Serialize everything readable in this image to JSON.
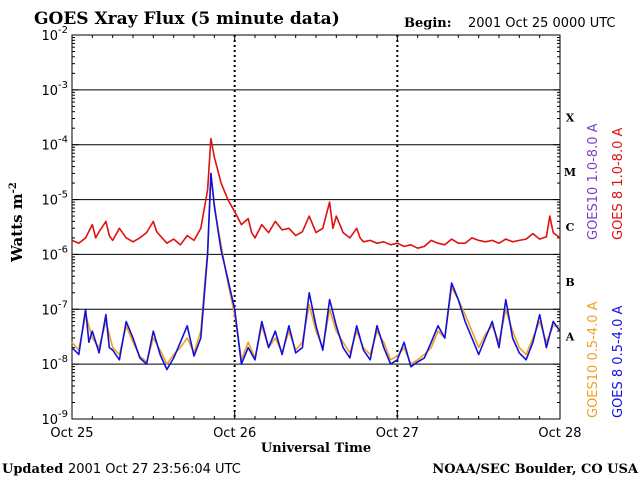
{
  "chart_data": {
    "type": "line",
    "title": "GOES Xray Flux (5 minute data)",
    "begin_label": "Begin:",
    "begin_value": "2001 Oct 25 0000 UTC",
    "ylabel": "Watts m",
    "ylabel_sup": "-2",
    "xlabel": "Universal Time",
    "yscale": "log",
    "ylim": [
      1e-09,
      0.01
    ],
    "y_ticks": [
      {
        "base": "10",
        "exp": "-2"
      },
      {
        "base": "10",
        "exp": "-3"
      },
      {
        "base": "10",
        "exp": "-4"
      },
      {
        "base": "10",
        "exp": "-5"
      },
      {
        "base": "10",
        "exp": "-6"
      },
      {
        "base": "10",
        "exp": "-7"
      },
      {
        "base": "10",
        "exp": "-8"
      },
      {
        "base": "10",
        "exp": "-9"
      }
    ],
    "x_ticks": [
      "Oct 25",
      "Oct 26",
      "Oct 27",
      "Oct 28"
    ],
    "x_range_hours": [
      0,
      72
    ],
    "flare_classes": [
      "X",
      "M",
      "C",
      "B",
      "A"
    ],
    "grid": "horizontal lines at each decade 1e-3 to 1e-8; dotted vertical lines at day boundaries",
    "legend_placement": "right side, vertical",
    "series": [
      {
        "name": "GOES10 1.0-8.0 A",
        "color": "#8040c0",
        "hidden_under": "GOES 8 1.0-8.0 A"
      },
      {
        "name": "GOES 8 1.0-8.0 A",
        "color": "#e01010",
        "points": [
          [
            0,
            1.8e-06
          ],
          [
            1,
            1.6e-06
          ],
          [
            2,
            2e-06
          ],
          [
            3,
            3.5e-06
          ],
          [
            3.5,
            2e-06
          ],
          [
            4,
            2.6e-06
          ],
          [
            5,
            4e-06
          ],
          [
            5.5,
            2.2e-06
          ],
          [
            6,
            1.8e-06
          ],
          [
            7,
            3e-06
          ],
          [
            8,
            2e-06
          ],
          [
            9,
            1.7e-06
          ],
          [
            10,
            2e-06
          ],
          [
            11,
            2.5e-06
          ],
          [
            12,
            4e-06
          ],
          [
            12.5,
            2.6e-06
          ],
          [
            13,
            2.2e-06
          ],
          [
            14,
            1.6e-06
          ],
          [
            15,
            1.9e-06
          ],
          [
            16,
            1.5e-06
          ],
          [
            17,
            2.2e-06
          ],
          [
            18,
            1.8e-06
          ],
          [
            19,
            3e-06
          ],
          [
            20,
            1.5e-05
          ],
          [
            20.5,
            0.00013
          ],
          [
            21,
            6e-05
          ],
          [
            22,
            2e-05
          ],
          [
            23,
            1e-05
          ],
          [
            24,
            6e-06
          ],
          [
            25,
            3.5e-06
          ],
          [
            26,
            4.5e-06
          ],
          [
            26.5,
            2.5e-06
          ],
          [
            27,
            2e-06
          ],
          [
            28,
            3.5e-06
          ],
          [
            29,
            2.5e-06
          ],
          [
            30,
            4e-06
          ],
          [
            31,
            2.8e-06
          ],
          [
            32,
            3e-06
          ],
          [
            33,
            2.2e-06
          ],
          [
            34,
            2.6e-06
          ],
          [
            35,
            5e-06
          ],
          [
            36,
            2.5e-06
          ],
          [
            37,
            3e-06
          ],
          [
            38,
            9e-06
          ],
          [
            38.5,
            3e-06
          ],
          [
            39,
            5e-06
          ],
          [
            40,
            2.5e-06
          ],
          [
            41,
            2e-06
          ],
          [
            42,
            3e-06
          ],
          [
            42.5,
            2e-06
          ],
          [
            43,
            1.7e-06
          ],
          [
            44,
            1.8e-06
          ],
          [
            45,
            1.6e-06
          ],
          [
            46,
            1.7e-06
          ],
          [
            47,
            1.5e-06
          ],
          [
            48,
            1.6e-06
          ],
          [
            49,
            1.4e-06
          ],
          [
            50,
            1.5e-06
          ],
          [
            51,
            1.3e-06
          ],
          [
            52,
            1.4e-06
          ],
          [
            53,
            1.8e-06
          ],
          [
            54,
            1.6e-06
          ],
          [
            55,
            1.5e-06
          ],
          [
            56,
            1.9e-06
          ],
          [
            57,
            1.6e-06
          ],
          [
            58,
            1.6e-06
          ],
          [
            59,
            2e-06
          ],
          [
            60,
            1.8e-06
          ],
          [
            61,
            1.7e-06
          ],
          [
            62,
            1.8e-06
          ],
          [
            63,
            1.6e-06
          ],
          [
            64,
            1.9e-06
          ],
          [
            65,
            1.7e-06
          ],
          [
            66,
            1.8e-06
          ],
          [
            67,
            1.9e-06
          ],
          [
            68,
            2.4e-06
          ],
          [
            69,
            1.9e-06
          ],
          [
            70,
            2.1e-06
          ],
          [
            70.5,
            5e-06
          ],
          [
            71,
            2.5e-06
          ],
          [
            72,
            2e-06
          ]
        ]
      },
      {
        "name": "GOES10 0.5-4.0 A",
        "color": "#f0a020",
        "points": [
          [
            0,
            2.5e-08
          ],
          [
            1,
            1.8e-08
          ],
          [
            2,
            8e-08
          ],
          [
            3,
            3e-08
          ],
          [
            4,
            2e-08
          ],
          [
            5,
            6e-08
          ],
          [
            6,
            2e-08
          ],
          [
            7,
            1.5e-08
          ],
          [
            8,
            5e-08
          ],
          [
            9,
            2.5e-08
          ],
          [
            10,
            1.4e-08
          ],
          [
            11,
            1.1e-08
          ],
          [
            12,
            3e-08
          ],
          [
            13,
            1.8e-08
          ],
          [
            14,
            1e-08
          ],
          [
            15,
            1.5e-08
          ],
          [
            16,
            2e-08
          ],
          [
            17,
            3e-08
          ],
          [
            18,
            1.6e-08
          ],
          [
            19,
            4e-08
          ],
          [
            20,
            1.2e-06
          ],
          [
            20.5,
            3e-05
          ],
          [
            21,
            7e-06
          ],
          [
            22,
            1.5e-06
          ],
          [
            23,
            3e-07
          ],
          [
            24,
            8e-08
          ],
          [
            25,
            1.2e-08
          ],
          [
            26,
            2.5e-08
          ],
          [
            27,
            1.3e-08
          ],
          [
            28,
            5e-08
          ],
          [
            29,
            2e-08
          ],
          [
            30,
            3e-08
          ],
          [
            31,
            1.6e-08
          ],
          [
            32,
            4e-08
          ],
          [
            33,
            1.8e-08
          ],
          [
            34,
            2.5e-08
          ],
          [
            35,
            1.2e-07
          ],
          [
            36,
            4e-08
          ],
          [
            37,
            2e-08
          ],
          [
            38,
            1e-07
          ],
          [
            39,
            4e-08
          ],
          [
            40,
            2.5e-08
          ],
          [
            41,
            1.6e-08
          ],
          [
            42,
            4e-08
          ],
          [
            43,
            2e-08
          ],
          [
            44,
            1.5e-08
          ],
          [
            45,
            4e-08
          ],
          [
            46,
            2.5e-08
          ],
          [
            47,
            1.2e-08
          ],
          [
            48,
            1.4e-08
          ],
          [
            49,
            2e-08
          ],
          [
            50,
            1e-08
          ],
          [
            51,
            1.2e-08
          ],
          [
            52,
            1.5e-08
          ],
          [
            53,
            2e-08
          ],
          [
            54,
            4e-08
          ],
          [
            55,
            3e-08
          ],
          [
            56,
            2.5e-07
          ],
          [
            57,
            1.5e-07
          ],
          [
            58,
            8e-08
          ],
          [
            59,
            4e-08
          ],
          [
            60,
            2e-08
          ],
          [
            61,
            3.5e-08
          ],
          [
            62,
            5e-08
          ],
          [
            63,
            2.5e-08
          ],
          [
            64,
            1e-07
          ],
          [
            65,
            4e-08
          ],
          [
            66,
            2e-08
          ],
          [
            67,
            1.5e-08
          ],
          [
            68,
            3e-08
          ],
          [
            69,
            6e-08
          ],
          [
            70,
            2.5e-08
          ],
          [
            71,
            5e-08
          ],
          [
            72,
            5e-08
          ]
        ]
      },
      {
        "name": "GOES 8 0.5-4.0 A",
        "color": "#1010e0",
        "points": [
          [
            0,
            2e-08
          ],
          [
            1,
            1.5e-08
          ],
          [
            2,
            1e-07
          ],
          [
            2.5,
            2.5e-08
          ],
          [
            3,
            4e-08
          ],
          [
            4,
            1.6e-08
          ],
          [
            5,
            8e-08
          ],
          [
            5.5,
            2e-08
          ],
          [
            6,
            1.8e-08
          ],
          [
            7,
            1.2e-08
          ],
          [
            8,
            6e-08
          ],
          [
            9,
            3e-08
          ],
          [
            10,
            1.3e-08
          ],
          [
            11,
            1e-08
          ],
          [
            12,
            4e-08
          ],
          [
            13,
            1.5e-08
          ],
          [
            14,
            8e-09
          ],
          [
            15,
            1.3e-08
          ],
          [
            16,
            2.5e-08
          ],
          [
            17,
            5e-08
          ],
          [
            18,
            1.4e-08
          ],
          [
            19,
            3e-08
          ],
          [
            20,
            1e-06
          ],
          [
            20.5,
            3e-05
          ],
          [
            21,
            8e-06
          ],
          [
            21.5,
            3e-06
          ],
          [
            22,
            1.2e-06
          ],
          [
            23,
            3.5e-07
          ],
          [
            24,
            1e-07
          ],
          [
            25,
            1e-08
          ],
          [
            26,
            2e-08
          ],
          [
            27,
            1.2e-08
          ],
          [
            28,
            6e-08
          ],
          [
            29,
            2e-08
          ],
          [
            30,
            4e-08
          ],
          [
            31,
            1.5e-08
          ],
          [
            32,
            5e-08
          ],
          [
            33,
            1.6e-08
          ],
          [
            34,
            2e-08
          ],
          [
            35,
            2e-07
          ],
          [
            36,
            5e-08
          ],
          [
            37,
            1.8e-08
          ],
          [
            38,
            1.5e-07
          ],
          [
            39,
            5e-08
          ],
          [
            40,
            2e-08
          ],
          [
            41,
            1.3e-08
          ],
          [
            42,
            5e-08
          ],
          [
            43,
            1.8e-08
          ],
          [
            44,
            1.2e-08
          ],
          [
            45,
            5e-08
          ],
          [
            46,
            2e-08
          ],
          [
            47,
            1e-08
          ],
          [
            48,
            1.2e-08
          ],
          [
            49,
            2.5e-08
          ],
          [
            50,
            9e-09
          ],
          [
            51,
            1.1e-08
          ],
          [
            52,
            1.3e-08
          ],
          [
            53,
            2.5e-08
          ],
          [
            54,
            5e-08
          ],
          [
            55,
            3e-08
          ],
          [
            56,
            3e-07
          ],
          [
            57,
            1.5e-07
          ],
          [
            58,
            6e-08
          ],
          [
            59,
            3e-08
          ],
          [
            60,
            1.5e-08
          ],
          [
            61,
            3e-08
          ],
          [
            62,
            6e-08
          ],
          [
            63,
            2e-08
          ],
          [
            64,
            1.5e-07
          ],
          [
            65,
            3e-08
          ],
          [
            66,
            1.6e-08
          ],
          [
            67,
            1.2e-08
          ],
          [
            68,
            2.5e-08
          ],
          [
            69,
            8e-08
          ],
          [
            70,
            2e-08
          ],
          [
            71,
            6e-08
          ],
          [
            72,
            4e-08
          ]
        ]
      }
    ]
  },
  "footer": {
    "updated_label": "Updated",
    "updated_value": "2001 Oct 27 23:56:04 UTC",
    "credit": "NOAA/SEC Boulder, CO USA"
  }
}
